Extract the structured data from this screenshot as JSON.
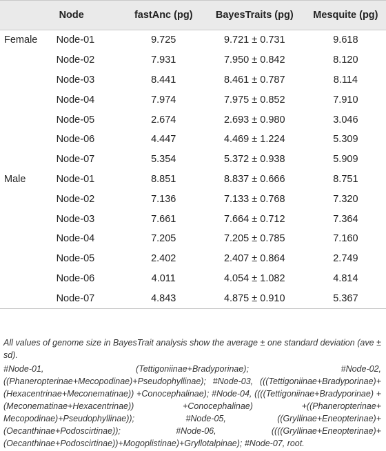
{
  "table": {
    "headers": [
      "",
      "Node",
      "fastAnc (pg)",
      "BayesTraits (pg)",
      "Mesquite (pg)"
    ],
    "groups": [
      {
        "label": "Female",
        "rows": [
          {
            "node": "Node-01",
            "fastanc": "9.725",
            "bayestraits": "9.721 ± 0.731",
            "mesquite": "9.618"
          },
          {
            "node": "Node-02",
            "fastanc": "7.931",
            "bayestraits": "7.950 ± 0.842",
            "mesquite": "8.120"
          },
          {
            "node": "Node-03",
            "fastanc": "8.441",
            "bayestraits": "8.461 ± 0.787",
            "mesquite": "8.114"
          },
          {
            "node": "Node-04",
            "fastanc": "7.974",
            "bayestraits": "7.975 ± 0.852",
            "mesquite": "7.910"
          },
          {
            "node": "Node-05",
            "fastanc": "2.674",
            "bayestraits": "2.693 ± 0.980",
            "mesquite": "3.046"
          },
          {
            "node": "Node-06",
            "fastanc": "4.447",
            "bayestraits": "4.469 ± 1.224",
            "mesquite": "5.309"
          },
          {
            "node": "Node-07",
            "fastanc": "5.354",
            "bayestraits": "5.372 ± 0.938",
            "mesquite": "5.909"
          }
        ]
      },
      {
        "label": "Male",
        "rows": [
          {
            "node": "Node-01",
            "fastanc": "8.851",
            "bayestraits": "8.837 ± 0.666",
            "mesquite": "8.751"
          },
          {
            "node": "Node-02",
            "fastanc": "7.136",
            "bayestraits": "7.133 ± 0.768",
            "mesquite": "7.320"
          },
          {
            "node": "Node-03",
            "fastanc": "7.661",
            "bayestraits": "7.664 ± 0.712",
            "mesquite": "7.364"
          },
          {
            "node": "Node-04",
            "fastanc": "7.205",
            "bayestraits": "7.205 ± 0.785",
            "mesquite": "7.160"
          },
          {
            "node": "Node-05",
            "fastanc": "2.402",
            "bayestraits": "2.407 ± 0.864",
            "mesquite": "2.749"
          },
          {
            "node": "Node-06",
            "fastanc": "4.011",
            "bayestraits": "4.054 ± 1.082",
            "mesquite": "4.814"
          },
          {
            "node": "Node-07",
            "fastanc": "4.843",
            "bayestraits": "4.875 ± 0.910",
            "mesquite": "5.367"
          }
        ]
      }
    ]
  },
  "footnotes": [
    "All values of genome size in BayesTrait analysis show the average ± one standard deviation (ave ± sd).",
    "#Node-01, (Tettigoniinae+Bradyporinae); #Node-02, ((Phaneropterinae+Mecopodinae)+Pseudophyllinae); #Node-03, (((Tettigoniinae+Bradyporinae)+(Hexacentrinae+Meconematinae)) +Conocephalinae); #Node-04, ((((Tettigoniinae+Bradyporinae) +(Meconematinae+Hexacentrinae)) +Conocephalinae) +((Phaneropterinae+ Mecopodinae)+Pseudophyllinae)); #Node-05, ((Gryllinae+Eneopterinae)+(Oecanthinae+Podoscirtinae)); #Node-06, ((((Gryllinae+Eneopterinae)+(Oecanthinae+Podoscirtinae))+Mogoplistinae)+Gryllotalpinae); #Node-07, root."
  ]
}
